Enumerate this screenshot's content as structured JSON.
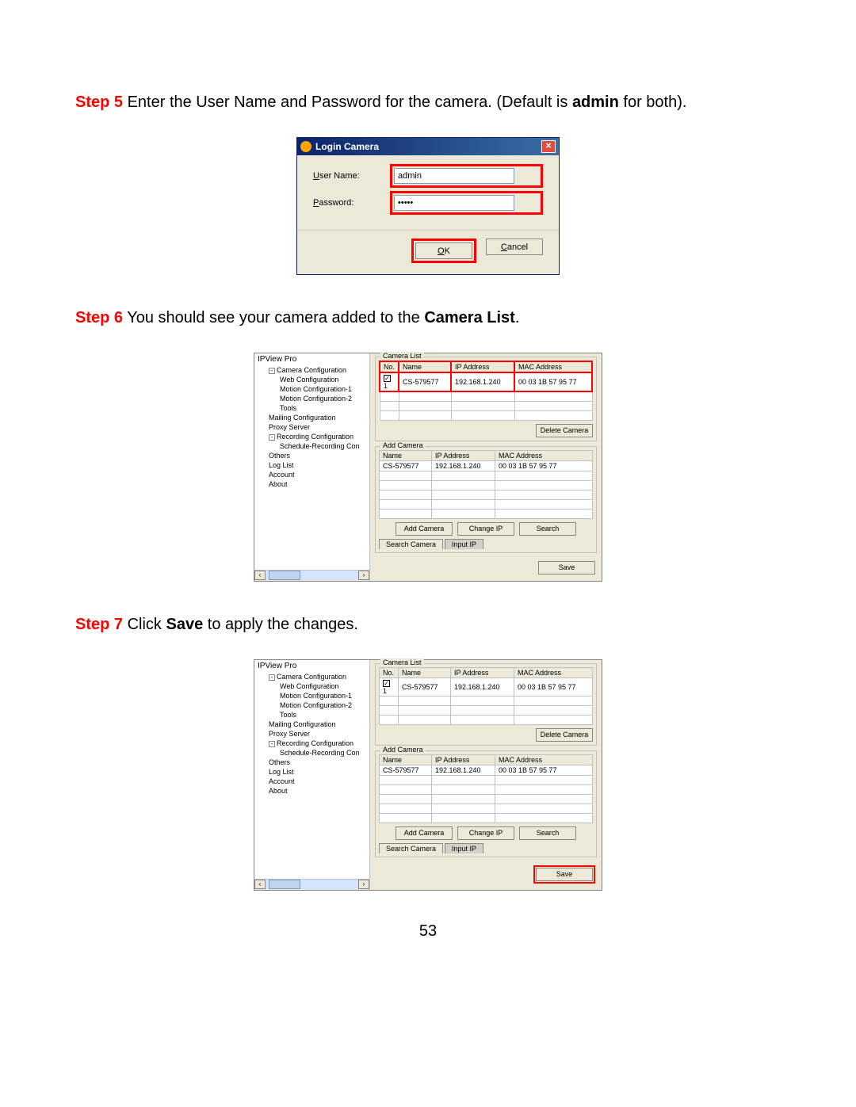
{
  "steps": {
    "s5": {
      "label": "Step 5",
      "text_pre": " Enter the User Name and Password for the camera. (Default is ",
      "bold": "admin",
      "text_post": " for both)."
    },
    "s6": {
      "label": "Step 6",
      "text_pre": " You should see your camera added to the ",
      "bold": "Camera List",
      "text_post": "."
    },
    "s7": {
      "label": "Step 7",
      "text_pre": " Click ",
      "bold": "Save",
      "text_post": " to apply the changes."
    }
  },
  "login": {
    "title": "Login Camera",
    "user_label": "ser Name:",
    "user_ul": "U",
    "pass_label": "assword:",
    "pass_ul": "P",
    "user_value": "admin",
    "pass_value": "•••••",
    "ok": "OK",
    "ok_ul": "O",
    "ok_rest": "K",
    "cancel": "Cancel",
    "cancel_ul": "C",
    "cancel_rest": "ancel"
  },
  "tree": {
    "root": "IPView Pro",
    "items": [
      {
        "lv": 1,
        "box": "-",
        "t": "Camera Configuration"
      },
      {
        "lv": 2,
        "t": "Web Configuration"
      },
      {
        "lv": 2,
        "t": "Motion Configuration-1"
      },
      {
        "lv": 2,
        "t": "Motion Configuration-2"
      },
      {
        "lv": 2,
        "t": "Tools"
      },
      {
        "lv": 1,
        "t": "Mailing Configuration"
      },
      {
        "lv": 1,
        "t": "Proxy Server"
      },
      {
        "lv": 1,
        "box": "-",
        "t": "Recording Configuration"
      },
      {
        "lv": 2,
        "t": "Schedule-Recording Con"
      },
      {
        "lv": 1,
        "t": "Others"
      },
      {
        "lv": 1,
        "t": "Log List"
      },
      {
        "lv": 1,
        "t": "Account"
      },
      {
        "lv": 1,
        "t": "About"
      }
    ]
  },
  "camlist": {
    "label": "Camera List",
    "cols": {
      "no": "No.",
      "name": "Name",
      "ip": "IP Address",
      "mac": "MAC Address"
    },
    "row": {
      "no": "1",
      "name": "CS-579577",
      "ip": "192.168.1.240",
      "mac": "00 03 1B 57 95 77"
    },
    "delete": "Delete Camera"
  },
  "addcam": {
    "label": "Add Camera",
    "cols": {
      "name": "Name",
      "ip": "IP Address",
      "mac": "MAC Address"
    },
    "row": {
      "name": "CS-579577",
      "ip": "192.168.1.240",
      "mac": "00 03 1B 57 95 77"
    },
    "btns": {
      "add": "Add Camera",
      "chg": "Change IP",
      "srch": "Search"
    },
    "tabs": {
      "t1": "Search Camera",
      "t2": "Input IP"
    }
  },
  "save": "Save",
  "page": "53"
}
